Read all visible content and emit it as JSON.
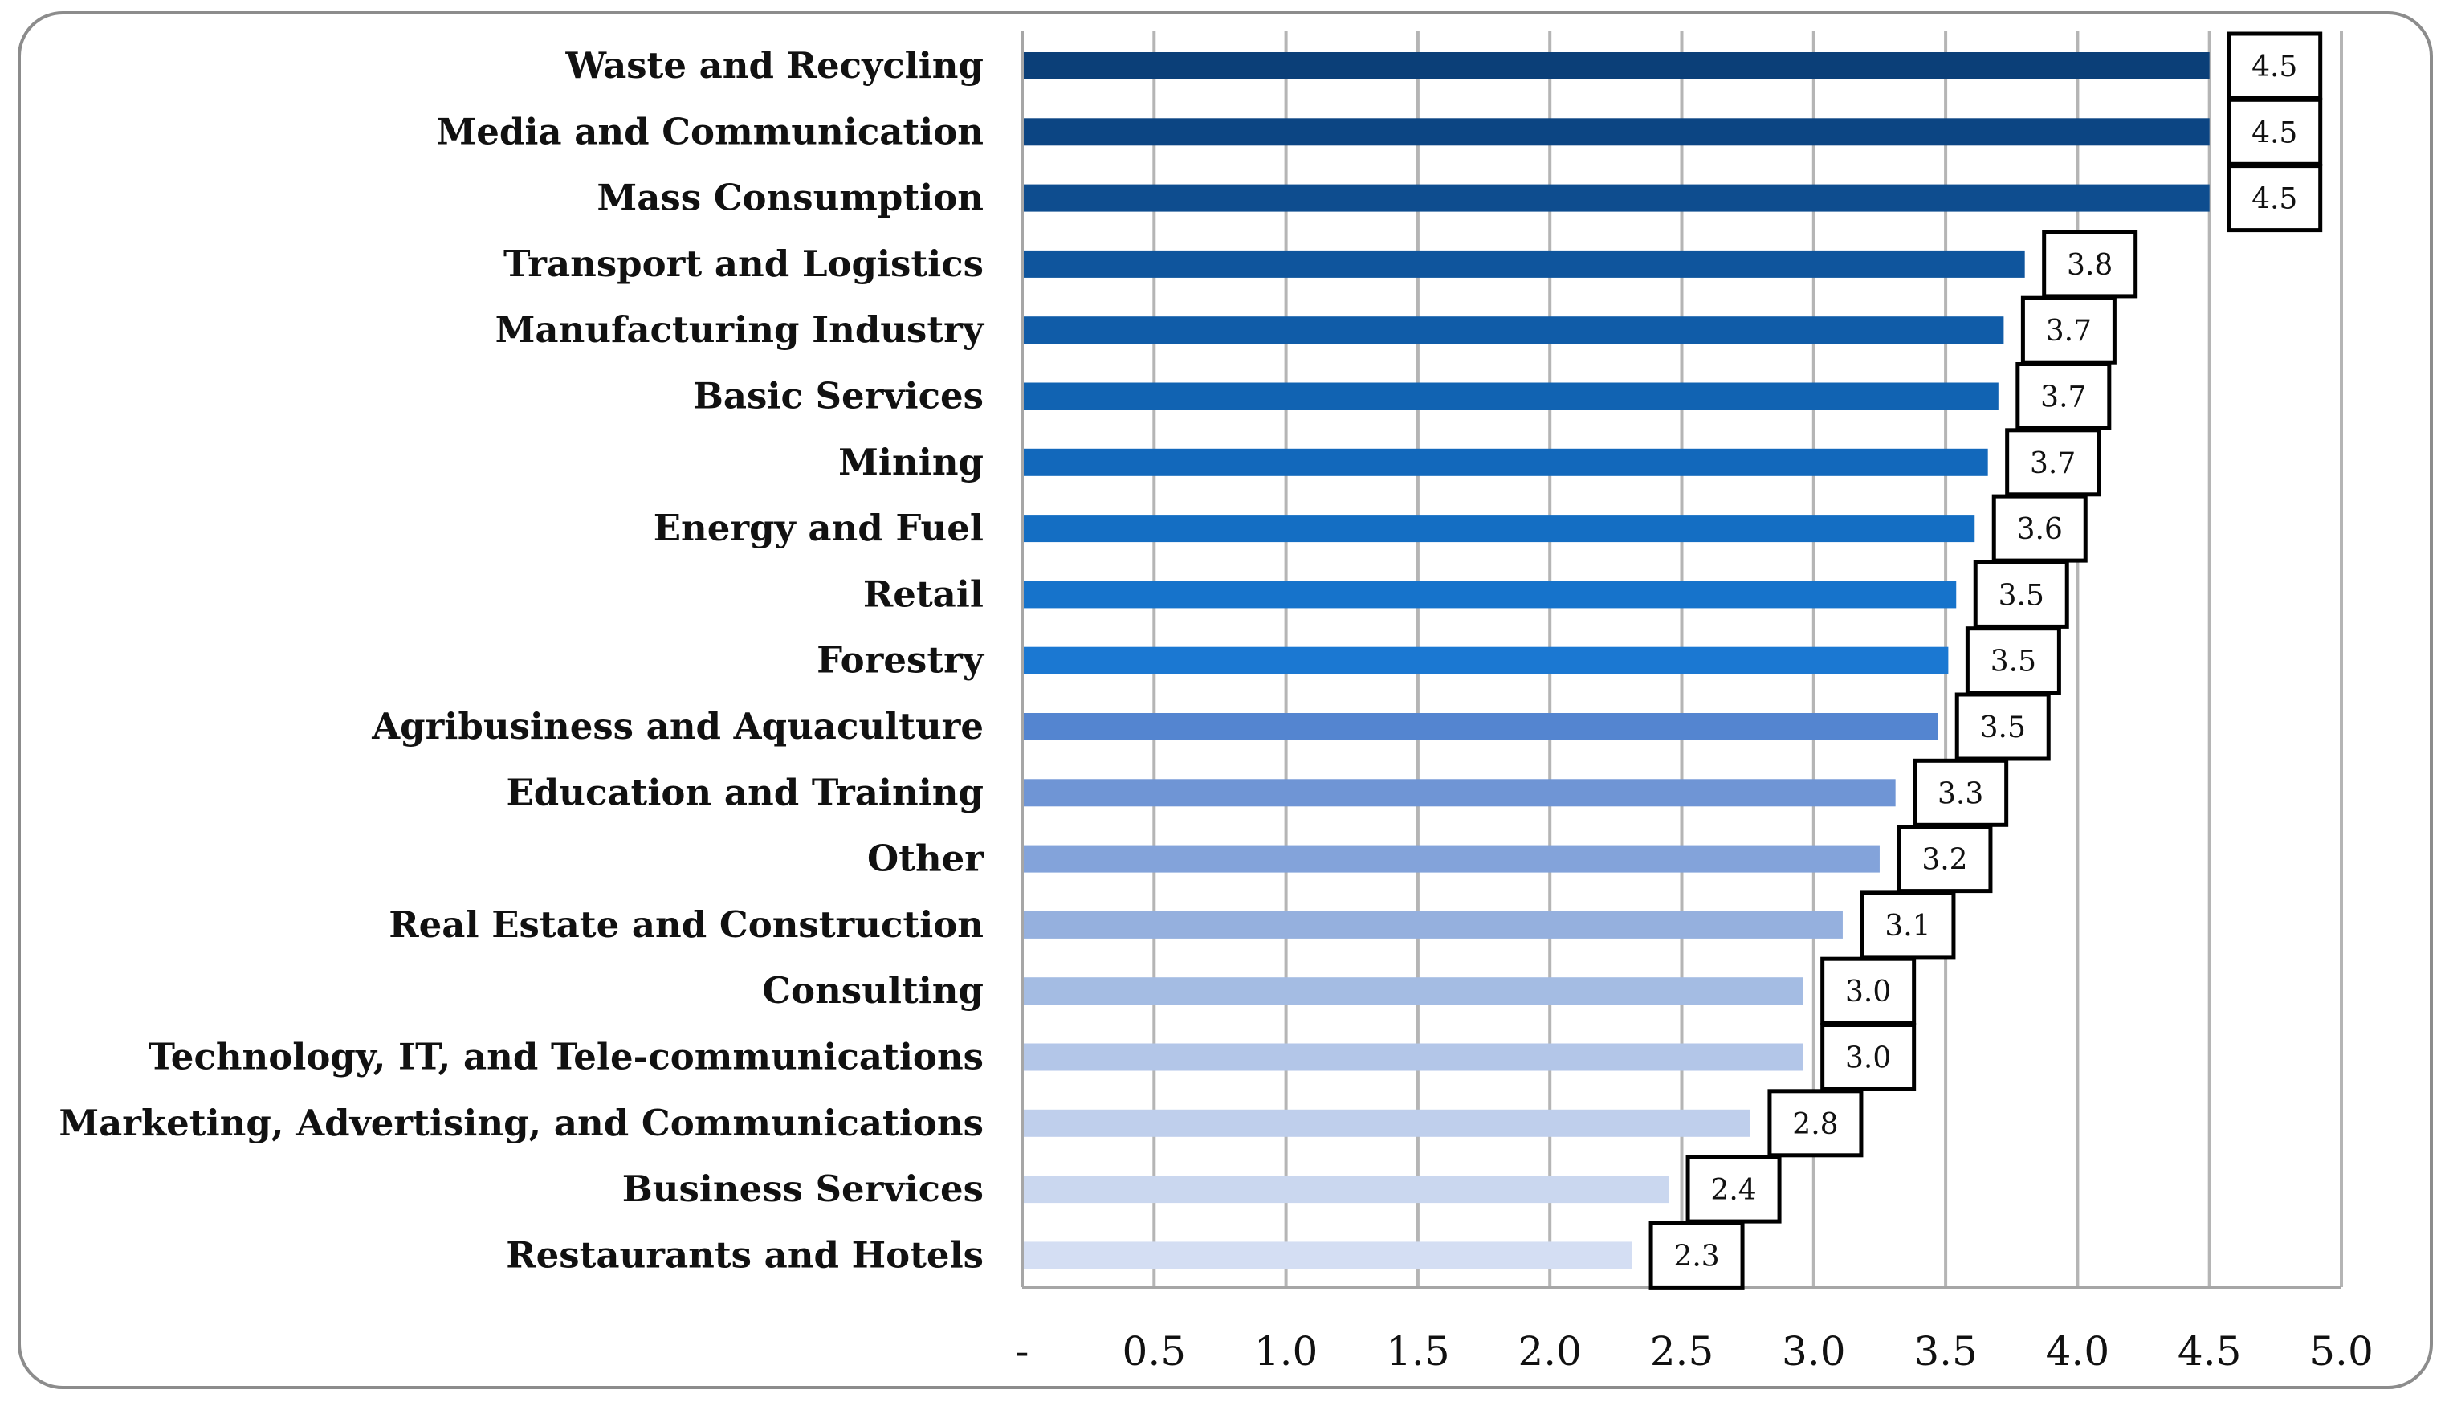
{
  "chart_data": {
    "type": "bar",
    "orientation": "horizontal",
    "title": "",
    "xlabel": "",
    "ylabel": "",
    "xlim": [
      0,
      5.0
    ],
    "grid": true,
    "legend": "none",
    "tick_labels": [
      "-",
      "0.5",
      "1.0",
      "1.5",
      "2.0",
      "2.5",
      "3.0",
      "3.5",
      "4.0",
      "4.5",
      "5.0"
    ],
    "tick_values": [
      0,
      0.5,
      1.0,
      1.5,
      2.0,
      2.5,
      3.0,
      3.5,
      4.0,
      4.5,
      5.0
    ],
    "categories": [
      "Waste and Recycling",
      "Media and Communication",
      "Mass Consumption",
      "Transport and Logistics",
      "Manufacturing Industry",
      "Basic Services",
      "Mining",
      "Energy and Fuel",
      "Retail",
      "Forestry",
      "Agribusiness and Aquaculture",
      "Education and Training",
      "Other",
      "Real Estate and Construction",
      "Consulting",
      "Technology, IT, and Tele-communications",
      "Marketing, Advertising, and Communications",
      "Business Services",
      "Restaurants and Hotels"
    ],
    "values": [
      4.5,
      4.5,
      4.5,
      3.8,
      3.72,
      3.7,
      3.66,
      3.61,
      3.54,
      3.51,
      3.47,
      3.31,
      3.25,
      3.11,
      2.96,
      2.96,
      2.76,
      2.45,
      2.31
    ],
    "data_labels": [
      "4.5",
      "4.5",
      "4.5",
      "3.8",
      "3.7",
      "3.7",
      "3.7",
      "3.6",
      "3.5",
      "3.5",
      "3.5",
      "3.3",
      "3.2",
      "3.1",
      "3.0",
      "3.0",
      "2.8",
      "2.4",
      "2.3"
    ],
    "colors": [
      "#0b3f78",
      "#0c4583",
      "#0e4d8f",
      "#0f559d",
      "#105ca8",
      "#1163b2",
      "#1268bb",
      "#146ec3",
      "#1673cb",
      "#1b78d2",
      "#5485d0",
      "#6f95d5",
      "#83a3da",
      "#95b0de",
      "#a4bce3",
      "#b3c6e8",
      "#bfcfec",
      "#cad7ef",
      "#d4def3"
    ]
  }
}
